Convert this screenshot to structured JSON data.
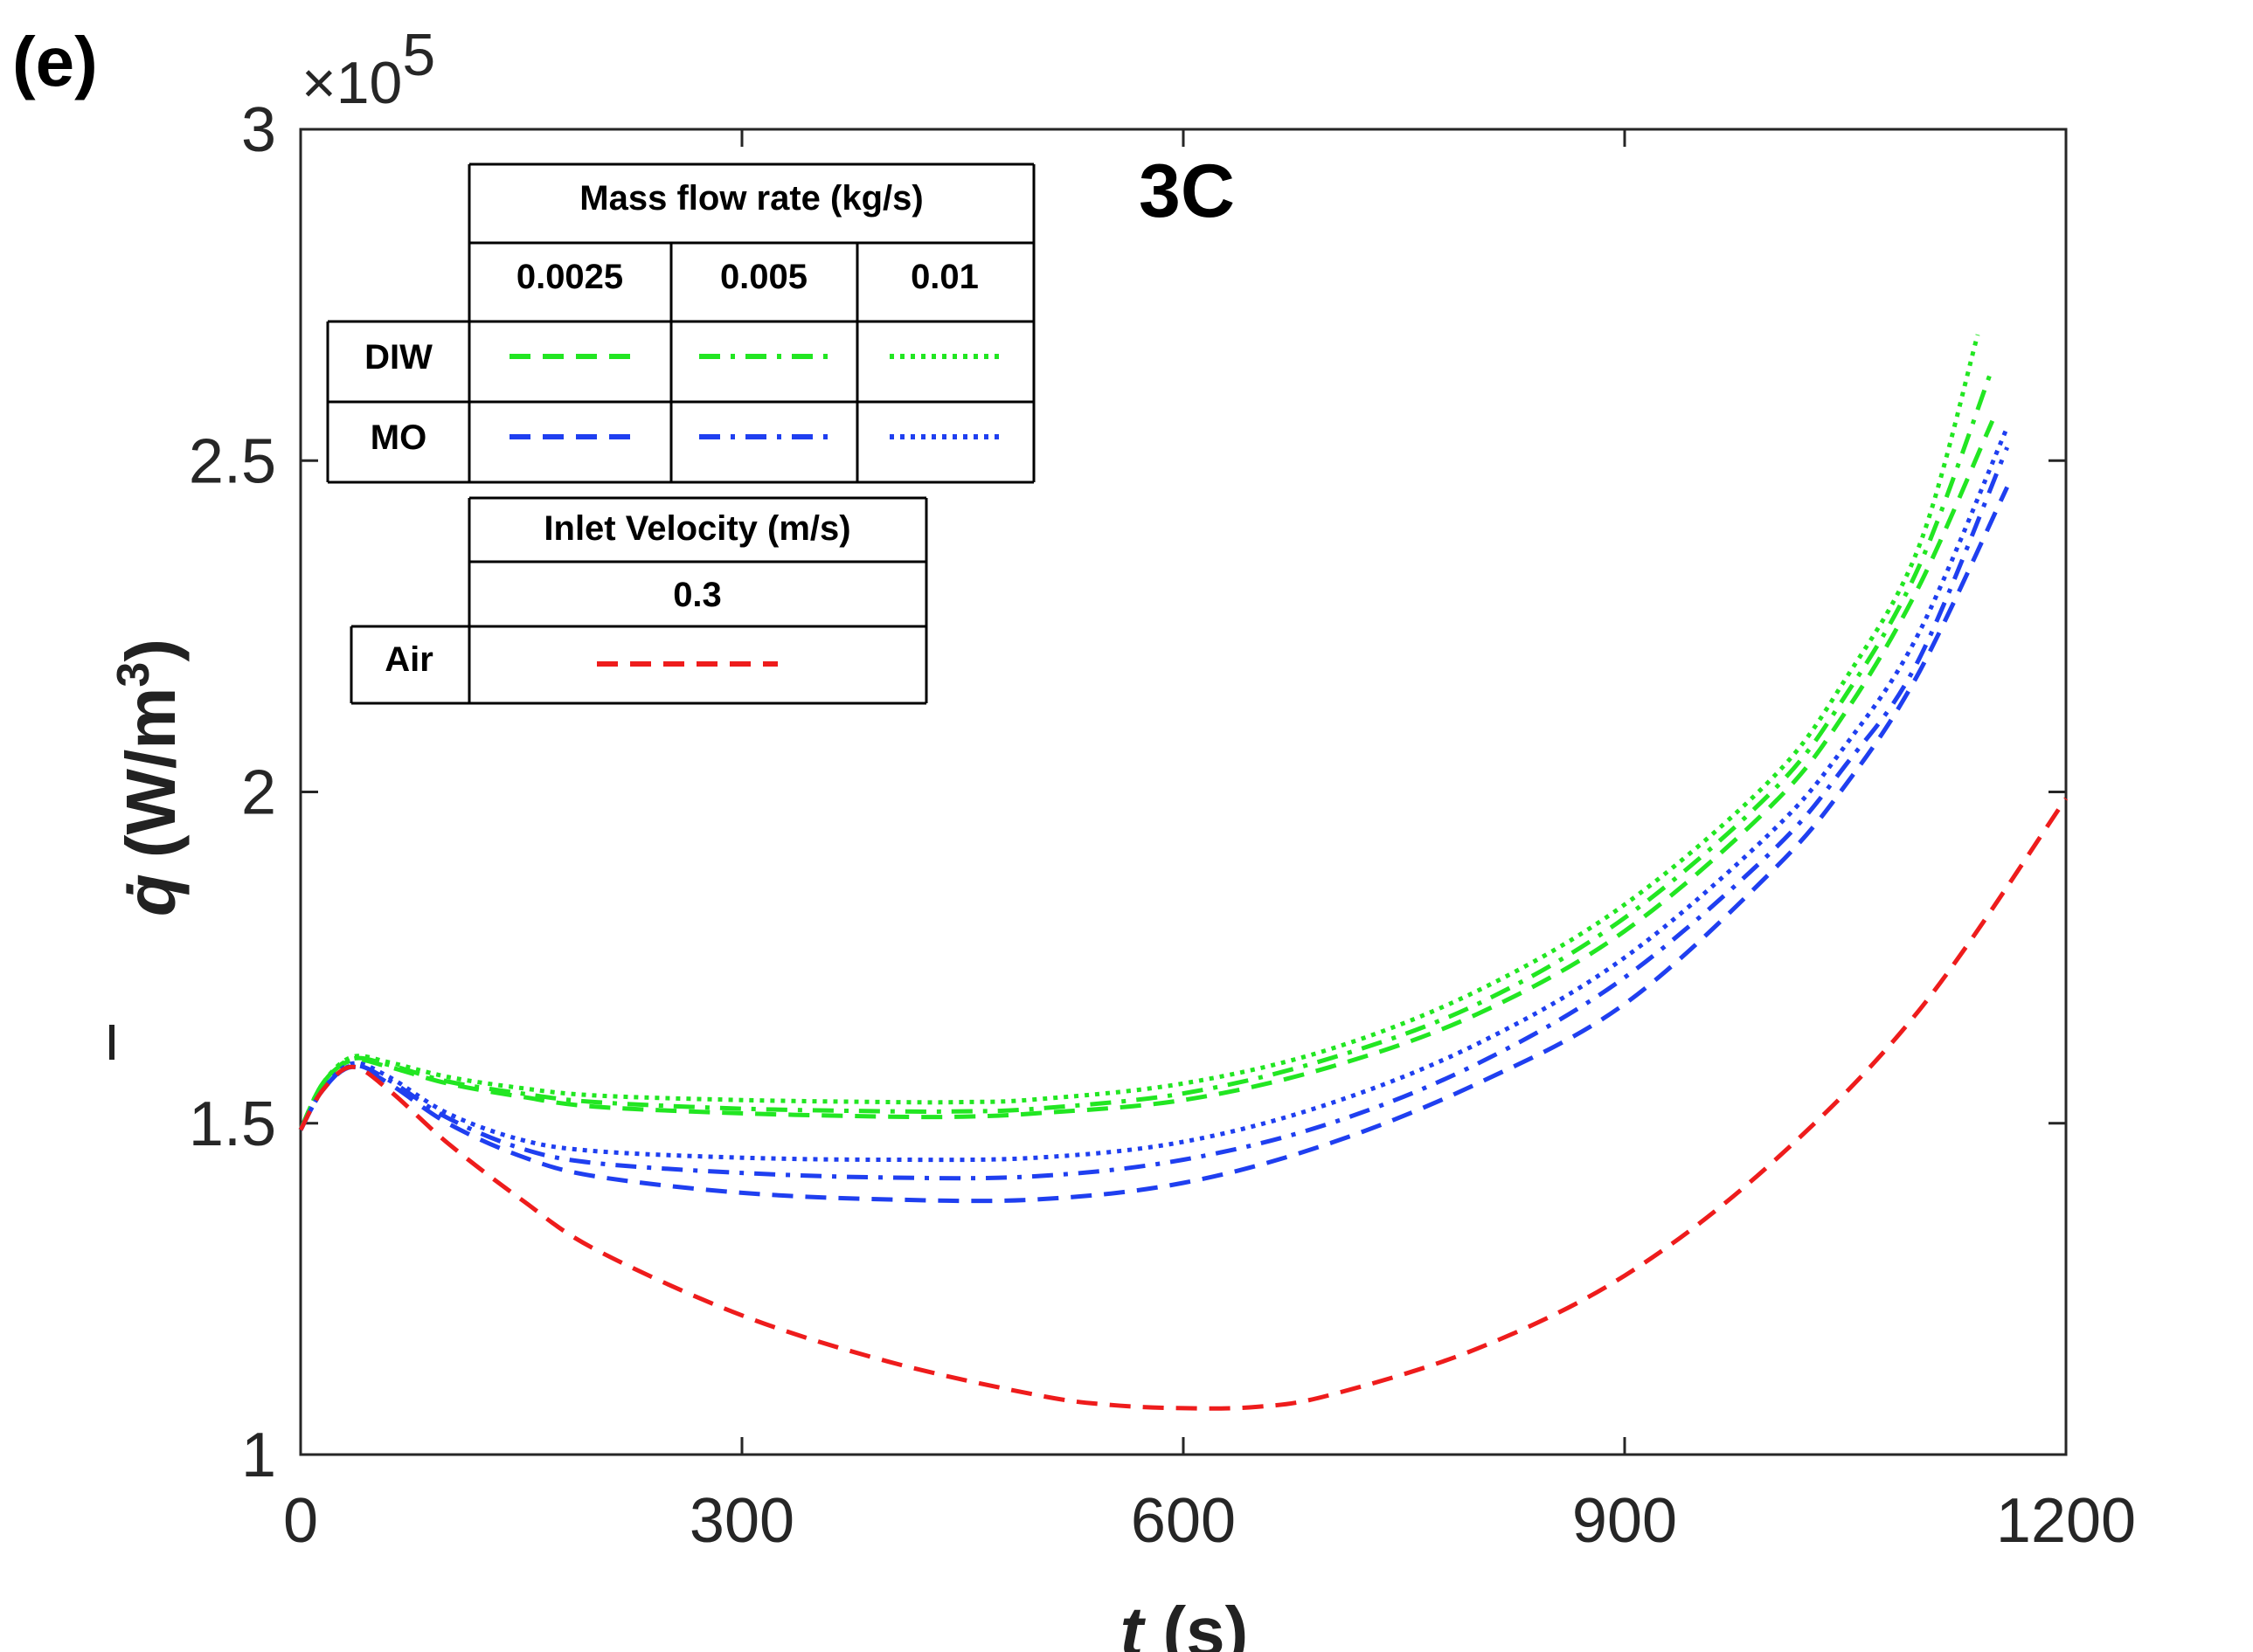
{
  "panel_label": "(e)",
  "chart_data": {
    "type": "line",
    "title": "3C",
    "xlabel_var": "t",
    "xlabel_unit": " (s)",
    "ylabel_var": "q̇",
    "ylabel_unit": "(W/m",
    "ylabel_unit_exp": "3",
    "ylabel_unit_close": ")",
    "y_multiplier_prefix": "×10",
    "y_multiplier_exp": "5",
    "xlim": [
      0,
      1200
    ],
    "ylim": [
      1,
      3
    ],
    "x_ticks": [
      0,
      300,
      600,
      900,
      1200
    ],
    "x_tick_labels": [
      "0",
      "300",
      "600",
      "900",
      "1200"
    ],
    "y_ticks": [
      1,
      1.5,
      2,
      2.5,
      3
    ],
    "y_tick_labels": [
      "1",
      "1.5",
      "2",
      "2.5",
      "3"
    ],
    "grid": false,
    "series": [
      {
        "name": "DIW 0.0025",
        "color": "#22e622",
        "style": "dashed",
        "points": [
          [
            0,
            1.49
          ],
          [
            15,
            1.56
          ],
          [
            35,
            1.595
          ],
          [
            60,
            1.585
          ],
          [
            100,
            1.56
          ],
          [
            150,
            1.54
          ],
          [
            200,
            1.525
          ],
          [
            300,
            1.515
          ],
          [
            400,
            1.51
          ],
          [
            450,
            1.51
          ],
          [
            500,
            1.515
          ],
          [
            600,
            1.535
          ],
          [
            700,
            1.585
          ],
          [
            800,
            1.665
          ],
          [
            900,
            1.79
          ],
          [
            1000,
            1.98
          ],
          [
            1050,
            2.12
          ],
          [
            1100,
            2.31
          ],
          [
            1150,
            2.56
          ]
        ]
      },
      {
        "name": "DIW 0.005",
        "color": "#22e622",
        "style": "dashdot",
        "points": [
          [
            0,
            1.49
          ],
          [
            15,
            1.56
          ],
          [
            35,
            1.597
          ],
          [
            60,
            1.588
          ],
          [
            100,
            1.563
          ],
          [
            150,
            1.545
          ],
          [
            200,
            1.532
          ],
          [
            300,
            1.522
          ],
          [
            400,
            1.518
          ],
          [
            450,
            1.518
          ],
          [
            500,
            1.522
          ],
          [
            600,
            1.545
          ],
          [
            700,
            1.598
          ],
          [
            800,
            1.68
          ],
          [
            900,
            1.81
          ],
          [
            1000,
            2.0
          ],
          [
            1050,
            2.145
          ],
          [
            1100,
            2.34
          ],
          [
            1150,
            2.64
          ]
        ]
      },
      {
        "name": "DIW 0.01",
        "color": "#22e622",
        "style": "dotted",
        "points": [
          [
            0,
            1.49
          ],
          [
            15,
            1.56
          ],
          [
            35,
            1.6
          ],
          [
            60,
            1.592
          ],
          [
            100,
            1.57
          ],
          [
            150,
            1.553
          ],
          [
            200,
            1.542
          ],
          [
            300,
            1.535
          ],
          [
            400,
            1.532
          ],
          [
            450,
            1.532
          ],
          [
            500,
            1.536
          ],
          [
            600,
            1.56
          ],
          [
            700,
            1.612
          ],
          [
            800,
            1.7
          ],
          [
            900,
            1.83
          ],
          [
            1000,
            2.02
          ],
          [
            1050,
            2.17
          ],
          [
            1100,
            2.37
          ],
          [
            1140,
            2.69
          ]
        ]
      },
      {
        "name": "MO 0.0025",
        "color": "#1f3ff0",
        "style": "dashed",
        "points": [
          [
            0,
            1.49
          ],
          [
            15,
            1.55
          ],
          [
            35,
            1.585
          ],
          [
            60,
            1.56
          ],
          [
            100,
            1.5
          ],
          [
            150,
            1.45
          ],
          [
            200,
            1.42
          ],
          [
            300,
            1.395
          ],
          [
            400,
            1.385
          ],
          [
            500,
            1.385
          ],
          [
            600,
            1.41
          ],
          [
            700,
            1.47
          ],
          [
            800,
            1.56
          ],
          [
            900,
            1.68
          ],
          [
            1000,
            1.88
          ],
          [
            1050,
            2.01
          ],
          [
            1100,
            2.18
          ],
          [
            1160,
            2.46
          ]
        ]
      },
      {
        "name": "MO 0.005",
        "color": "#1f3ff0",
        "style": "dashdot",
        "points": [
          [
            0,
            1.49
          ],
          [
            15,
            1.55
          ],
          [
            35,
            1.587
          ],
          [
            60,
            1.565
          ],
          [
            100,
            1.508
          ],
          [
            150,
            1.462
          ],
          [
            200,
            1.44
          ],
          [
            300,
            1.425
          ],
          [
            400,
            1.418
          ],
          [
            500,
            1.42
          ],
          [
            600,
            1.445
          ],
          [
            700,
            1.5
          ],
          [
            800,
            1.59
          ],
          [
            900,
            1.72
          ],
          [
            1000,
            1.91
          ],
          [
            1050,
            2.04
          ],
          [
            1100,
            2.2
          ],
          [
            1160,
            2.52
          ]
        ]
      },
      {
        "name": "MO 0.01",
        "color": "#1f3ff0",
        "style": "dotted",
        "points": [
          [
            0,
            1.49
          ],
          [
            15,
            1.55
          ],
          [
            35,
            1.59
          ],
          [
            60,
            1.57
          ],
          [
            100,
            1.515
          ],
          [
            150,
            1.475
          ],
          [
            200,
            1.458
          ],
          [
            300,
            1.448
          ],
          [
            400,
            1.445
          ],
          [
            500,
            1.448
          ],
          [
            600,
            1.472
          ],
          [
            700,
            1.53
          ],
          [
            800,
            1.62
          ],
          [
            900,
            1.75
          ],
          [
            1000,
            1.94
          ],
          [
            1050,
            2.07
          ],
          [
            1100,
            2.24
          ],
          [
            1160,
            2.55
          ]
        ]
      },
      {
        "name": "Air 0.3",
        "color": "#ee1c1c",
        "style": "dashed",
        "points": [
          [
            0,
            1.49
          ],
          [
            15,
            1.55
          ],
          [
            35,
            1.585
          ],
          [
            60,
            1.55
          ],
          [
            100,
            1.47
          ],
          [
            150,
            1.385
          ],
          [
            200,
            1.31
          ],
          [
            300,
            1.21
          ],
          [
            400,
            1.14
          ],
          [
            500,
            1.09
          ],
          [
            550,
            1.075
          ],
          [
            600,
            1.07
          ],
          [
            650,
            1.072
          ],
          [
            700,
            1.09
          ],
          [
            800,
            1.16
          ],
          [
            900,
            1.27
          ],
          [
            1000,
            1.44
          ],
          [
            1100,
            1.67
          ],
          [
            1200,
            1.99
          ]
        ]
      }
    ],
    "legend_mass_flow": {
      "header": "Mass flow rate (kg/s)",
      "columns": [
        "0.0025",
        "0.005",
        "0.01"
      ],
      "rows": [
        {
          "label": "DIW",
          "color": "#22e622"
        },
        {
          "label": "MO",
          "color": "#1f3ff0"
        }
      ]
    },
    "legend_inlet_velocity": {
      "header": "Inlet Velocity (m/s)",
      "columns": [
        "0.3"
      ],
      "rows": [
        {
          "label": "Air",
          "color": "#ee1c1c"
        }
      ]
    }
  }
}
